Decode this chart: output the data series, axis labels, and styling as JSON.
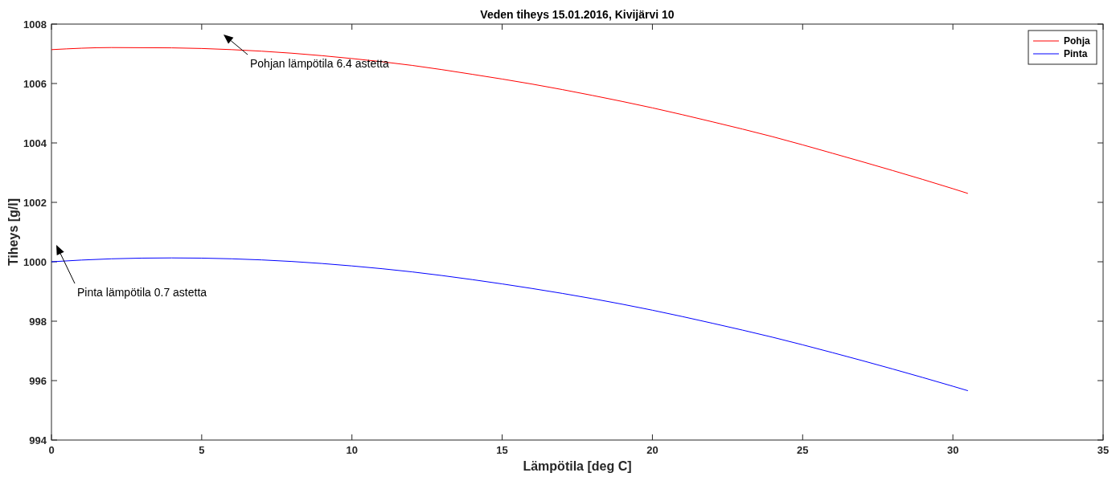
{
  "chart_data": {
    "type": "line",
    "title": "Veden tiheys 15.01.2016, Kivijärvi 10",
    "xlabel": "Lämpötila [deg C]",
    "ylabel": "Tiheys [g/l]",
    "x": [
      0,
      2,
      4,
      6,
      8,
      10,
      12,
      14,
      16,
      18,
      20,
      22,
      24,
      26,
      28,
      30,
      30.5
    ],
    "series": [
      {
        "name": "Pohja",
        "color": "#ff0000",
        "values": [
          1007.14,
          1007.21,
          1007.2,
          1007.14,
          1007.02,
          1006.84,
          1006.61,
          1006.31,
          1005.98,
          1005.6,
          1005.18,
          1004.71,
          1004.21,
          1003.65,
          1003.07,
          1002.46,
          1002.3
        ]
      },
      {
        "name": "Pinta",
        "color": "#0000ff",
        "values": [
          1000.0,
          1000.1,
          1000.13,
          1000.1,
          1000.01,
          999.86,
          999.66,
          999.4,
          999.1,
          998.76,
          998.37,
          997.93,
          997.46,
          996.94,
          996.39,
          995.81,
          995.66
        ]
      }
    ],
    "annotations": [
      "Pohjan lämpötila 6.4 astetta",
      "Pinta lämpötila 0.7 astetta"
    ],
    "xlim": [
      0,
      35
    ],
    "xticks": [
      0,
      5,
      10,
      15,
      20,
      25,
      30,
      35
    ],
    "ylim": [
      994,
      1008
    ],
    "yticks": [
      994,
      996,
      998,
      1000,
      1002,
      1004,
      1006,
      1008
    ],
    "legend": "top right",
    "grid": false,
    "marker": "none",
    "line_style": "solid"
  }
}
